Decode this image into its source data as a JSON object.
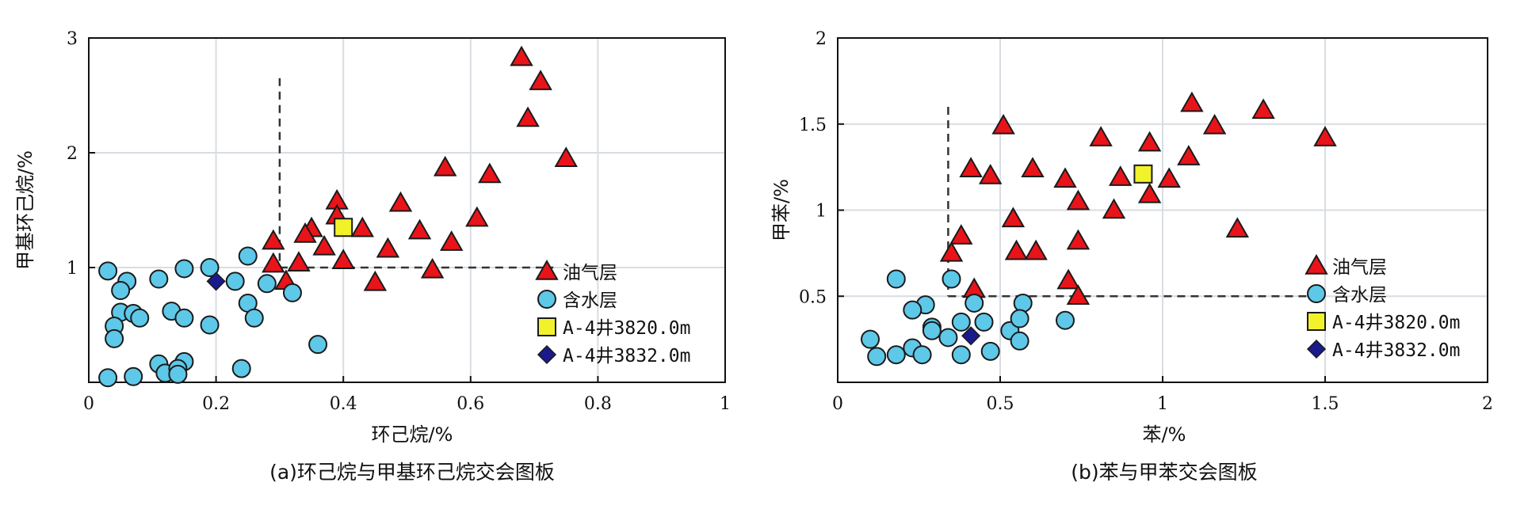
{
  "colors": {
    "oil_gas": "#e8141a",
    "water": "#5ec8e8",
    "sample_3820": "#f2f22a",
    "sample_3832": "#1a1a8c",
    "grid": "#d8dde3",
    "threshold": "#333333"
  },
  "chart_data": [
    {
      "type": "scatter",
      "caption": "(a)环己烷与甲基环己烷交会图板",
      "xlabel": "环己烷/%",
      "ylabel": "甲基环己烷/%",
      "xlim": [
        0,
        1
      ],
      "ylim": [
        0,
        3
      ],
      "xticks": [
        0,
        0.2,
        0.4,
        0.6,
        0.8,
        1
      ],
      "xtick_labels": [
        "0",
        "0.2",
        "0.4",
        "0.6",
        "0.8",
        "1"
      ],
      "yticks": [
        1,
        2,
        3
      ],
      "ytick_labels": [
        "1",
        "2",
        "3"
      ],
      "grid": true,
      "legend_position": "bottom-right",
      "thresholds": {
        "vertical_x": 0.3,
        "vertical_y_max": 2.65,
        "horizontal_y": 1.0,
        "horizontal_x_max": 0.73
      },
      "series": [
        {
          "name": "油气层",
          "marker": "triangle",
          "color_key": "oil_gas",
          "points": [
            [
              0.68,
              2.83
            ],
            [
              0.71,
              2.62
            ],
            [
              0.69,
              2.3
            ],
            [
              0.75,
              1.95
            ],
            [
              0.56,
              1.87
            ],
            [
              0.63,
              1.81
            ],
            [
              0.49,
              1.56
            ],
            [
              0.39,
              1.58
            ],
            [
              0.39,
              1.45
            ],
            [
              0.35,
              1.34
            ],
            [
              0.34,
              1.29
            ],
            [
              0.43,
              1.34
            ],
            [
              0.52,
              1.32
            ],
            [
              0.61,
              1.43
            ],
            [
              0.57,
              1.22
            ],
            [
              0.29,
              1.23
            ],
            [
              0.37,
              1.18
            ],
            [
              0.47,
              1.16
            ],
            [
              0.29,
              1.03
            ],
            [
              0.33,
              1.04
            ],
            [
              0.4,
              1.06
            ],
            [
              0.31,
              0.88
            ],
            [
              0.45,
              0.87
            ],
            [
              0.54,
              0.98
            ]
          ]
        },
        {
          "name": "含水层",
          "marker": "circle",
          "color_key": "water",
          "points": [
            [
              0.03,
              0.97
            ],
            [
              0.06,
              0.88
            ],
            [
              0.05,
              0.8
            ],
            [
              0.11,
              0.9
            ],
            [
              0.15,
              0.99
            ],
            [
              0.19,
              1.0
            ],
            [
              0.25,
              1.1
            ],
            [
              0.23,
              0.88
            ],
            [
              0.28,
              0.86
            ],
            [
              0.32,
              0.78
            ],
            [
              0.25,
              0.69
            ],
            [
              0.26,
              0.56
            ],
            [
              0.05,
              0.61
            ],
            [
              0.07,
              0.6
            ],
            [
              0.08,
              0.56
            ],
            [
              0.13,
              0.62
            ],
            [
              0.15,
              0.56
            ],
            [
              0.04,
              0.49
            ],
            [
              0.04,
              0.38
            ],
            [
              0.19,
              0.5
            ],
            [
              0.36,
              0.33
            ],
            [
              0.11,
              0.16
            ],
            [
              0.15,
              0.18
            ],
            [
              0.12,
              0.08
            ],
            [
              0.14,
              0.12
            ],
            [
              0.14,
              0.07
            ],
            [
              0.24,
              0.12
            ],
            [
              0.03,
              0.04
            ],
            [
              0.07,
              0.05
            ]
          ]
        },
        {
          "name": "A-4井3820.0m",
          "marker": "square",
          "color_key": "sample_3820",
          "points": [
            [
              0.4,
              1.35
            ]
          ]
        },
        {
          "name": "A-4井3832.0m",
          "marker": "diamond",
          "color_key": "sample_3832",
          "points": [
            [
              0.2,
              0.88
            ]
          ]
        }
      ]
    },
    {
      "type": "scatter",
      "caption": "(b)苯与甲苯交会图板",
      "xlabel": "苯/%",
      "ylabel": "甲苯/%",
      "xlim": [
        0,
        2
      ],
      "ylim": [
        0,
        2
      ],
      "xticks": [
        0,
        0.5,
        1,
        1.5,
        2
      ],
      "xtick_labels": [
        "0",
        "0.5",
        "1",
        "1.5",
        "2"
      ],
      "yticks": [
        0.5,
        1,
        1.5,
        2
      ],
      "ytick_labels": [
        "0.5",
        "1",
        "1.5",
        "2"
      ],
      "grid": true,
      "legend_position": "bottom-right",
      "thresholds": {
        "vertical_x": 0.34,
        "vertical_y_max": 1.6,
        "horizontal_y": 0.5,
        "horizontal_x_max": 1.46
      },
      "series": [
        {
          "name": "油气层",
          "marker": "triangle",
          "color_key": "oil_gas",
          "points": [
            [
              1.09,
              1.62
            ],
            [
              1.31,
              1.58
            ],
            [
              1.5,
              1.42
            ],
            [
              1.16,
              1.49
            ],
            [
              0.51,
              1.49
            ],
            [
              0.81,
              1.42
            ],
            [
              0.96,
              1.39
            ],
            [
              1.08,
              1.31
            ],
            [
              0.41,
              1.24
            ],
            [
              0.47,
              1.2
            ],
            [
              0.6,
              1.24
            ],
            [
              0.7,
              1.18
            ],
            [
              0.87,
              1.19
            ],
            [
              1.02,
              1.18
            ],
            [
              0.96,
              1.09
            ],
            [
              0.74,
              1.05
            ],
            [
              0.85,
              1.0
            ],
            [
              0.54,
              0.95
            ],
            [
              1.23,
              0.89
            ],
            [
              0.38,
              0.85
            ],
            [
              0.74,
              0.82
            ],
            [
              0.55,
              0.76
            ],
            [
              0.61,
              0.76
            ],
            [
              0.35,
              0.75
            ],
            [
              0.71,
              0.59
            ],
            [
              0.42,
              0.54
            ],
            [
              0.74,
              0.5
            ]
          ]
        },
        {
          "name": "含水层",
          "marker": "circle",
          "color_key": "water",
          "points": [
            [
              0.18,
              0.6
            ],
            [
              0.35,
              0.6
            ],
            [
              0.27,
              0.45
            ],
            [
              0.42,
              0.46
            ],
            [
              0.57,
              0.46
            ],
            [
              0.23,
              0.42
            ],
            [
              0.53,
              0.3
            ],
            [
              0.45,
              0.35
            ],
            [
              0.38,
              0.35
            ],
            [
              0.56,
              0.37
            ],
            [
              0.7,
              0.36
            ],
            [
              0.29,
              0.32
            ],
            [
              0.29,
              0.3
            ],
            [
              0.1,
              0.25
            ],
            [
              0.34,
              0.26
            ],
            [
              0.23,
              0.2
            ],
            [
              0.12,
              0.15
            ],
            [
              0.18,
              0.16
            ],
            [
              0.26,
              0.16
            ],
            [
              0.38,
              0.16
            ],
            [
              0.47,
              0.18
            ],
            [
              0.56,
              0.24
            ]
          ]
        },
        {
          "name": "A-4井3820.0m",
          "marker": "square",
          "color_key": "sample_3820",
          "points": [
            [
              0.94,
              1.21
            ]
          ]
        },
        {
          "name": "A-4井3832.0m",
          "marker": "diamond",
          "color_key": "sample_3832",
          "points": [
            [
              0.41,
              0.27
            ]
          ]
        }
      ]
    }
  ]
}
